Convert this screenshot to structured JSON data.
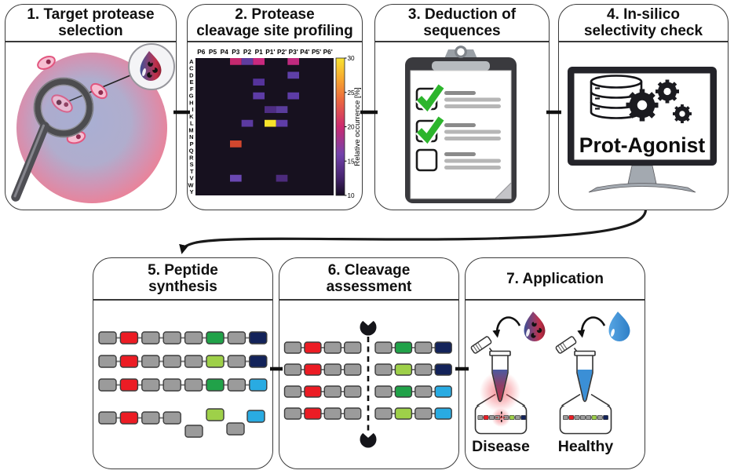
{
  "panels": {
    "p1": {
      "title": "1. Target protease\nselection"
    },
    "p2": {
      "title": "2. Protease\ncleavage site profiling"
    },
    "p3": {
      "title": "3. Deduction of\nsequences"
    },
    "p4": {
      "title": "4. In-silico\nselectivity check",
      "screen_text": "Prot-Agonist"
    },
    "p5": {
      "title": "5. Peptide\nsynthesis"
    },
    "p6": {
      "title": "6. Cleavage\nassessment"
    },
    "p7": {
      "title": "7. Application",
      "disease_label": "Disease",
      "healthy_label": "Healthy"
    }
  },
  "chart_data": {
    "type": "heatmap",
    "columns": [
      "P6",
      "P5",
      "P4",
      "P3",
      "P2",
      "P1",
      "P1'",
      "P2'",
      "P3'",
      "P4'",
      "P5'",
      "P6'"
    ],
    "rows": [
      "A",
      "C",
      "D",
      "E",
      "F",
      "G",
      "H",
      "I",
      "K",
      "L",
      "M",
      "N",
      "P",
      "Q",
      "R",
      "S",
      "T",
      "V",
      "W",
      "Y"
    ],
    "background_color": "#17111f",
    "cells": [
      {
        "row": "A",
        "col": "P3",
        "value": 21,
        "color": "#c4296f"
      },
      {
        "row": "A",
        "col": "P2",
        "value": 15,
        "color": "#5f3d9e"
      },
      {
        "row": "A",
        "col": "P1",
        "value": 21,
        "color": "#c9297e"
      },
      {
        "row": "A",
        "col": "P3'",
        "value": 20,
        "color": "#c02a7f"
      },
      {
        "row": "D",
        "col": "P3'",
        "value": 15,
        "color": "#5f40a8"
      },
      {
        "row": "E",
        "col": "P1",
        "value": 14,
        "color": "#55339b"
      },
      {
        "row": "G",
        "col": "P1",
        "value": 15,
        "color": "#5d3ca6"
      },
      {
        "row": "G",
        "col": "P3'",
        "value": 15,
        "color": "#5d3ca6"
      },
      {
        "row": "I",
        "col": "P1'",
        "value": 13,
        "color": "#4e2d83"
      },
      {
        "row": "I",
        "col": "P2'",
        "value": 14,
        "color": "#5a3c9c"
      },
      {
        "row": "L",
        "col": "P2",
        "value": 15,
        "color": "#5b3aa0"
      },
      {
        "row": "L",
        "col": "P1'",
        "value": 30,
        "color": "#f7e22b"
      },
      {
        "row": "L",
        "col": "P2'",
        "value": 15,
        "color": "#5e3da6"
      },
      {
        "row": "P",
        "col": "P3",
        "value": 24,
        "color": "#d1472e"
      },
      {
        "row": "V",
        "col": "P3",
        "value": 16,
        "color": "#6a48b2"
      },
      {
        "row": "V",
        "col": "P2'",
        "value": 13,
        "color": "#4c2b7c"
      }
    ],
    "colorbar": {
      "label": "Relative occurrence [%]",
      "min": 10,
      "max": 30,
      "ticks": [
        30,
        25,
        20,
        15,
        10
      ]
    }
  },
  "peptides": {
    "palette": {
      "g": "#9b9b9b",
      "r": "#ec1c24",
      "G": "#21a249",
      "L": "#9ed049",
      "n": "#13235a",
      "b": "#29abe2"
    },
    "synthesis_rows": [
      "grgggGgn",
      "grgggLgn",
      "grgggGgb"
    ],
    "synthesis_partial": {
      "attached": "grgg",
      "loose": "gLgb"
    },
    "cleavage_rows": [
      {
        "left": "grgg",
        "right": "gGgn"
      },
      {
        "left": "grgg",
        "right": "gLgn"
      },
      {
        "left": "grgg",
        "right": "gGgb"
      },
      {
        "left": "grgg",
        "right": "gLgb"
      }
    ],
    "application": {
      "disease_left": "grgg",
      "disease_right": "gLgn",
      "healthy": "grgggLgn"
    }
  }
}
